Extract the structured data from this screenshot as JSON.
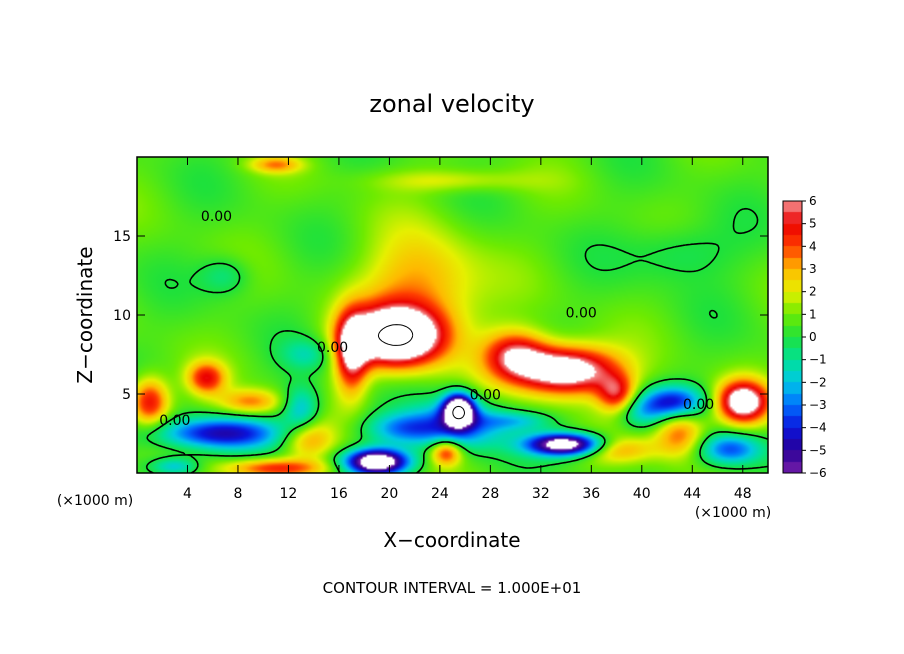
{
  "chart_data": {
    "type": "heatmap",
    "title": "zonal velocity",
    "xlabel": "X−coordinate",
    "ylabel": "Z−coordinate",
    "x_unit_label_left": "(×1000 m)",
    "x_unit_label_right": "(×1000 m)",
    "xlim": [
      0,
      50
    ],
    "ylim": [
      0,
      20
    ],
    "x_ticks": [
      4,
      8,
      12,
      16,
      20,
      24,
      28,
      32,
      36,
      40,
      44,
      48
    ],
    "x_tick_labels": [
      "4",
      "8",
      "12",
      "16",
      "20",
      "24",
      "28",
      "32",
      "36",
      "40",
      "44",
      "48"
    ],
    "y_ticks": [
      5,
      10,
      15
    ],
    "y_tick_labels": [
      "5",
      "10",
      "15"
    ],
    "colorbar": {
      "min": -6,
      "max": 6,
      "ticks": [
        6,
        5,
        4,
        3,
        2,
        1,
        0,
        -1,
        -2,
        -3,
        -4,
        -5,
        -6
      ],
      "tick_labels": [
        "6",
        "5",
        "4",
        "3",
        "2",
        "1",
        "0",
        "−1",
        "−2",
        "−3",
        "−4",
        "−5",
        "−6"
      ]
    },
    "contour_labels": [
      {
        "text": "0.00",
        "x": 6.3,
        "z": 16.2
      },
      {
        "text": "0.00",
        "x": 35.2,
        "z": 10.1
      },
      {
        "text": "0.00",
        "x": 15.5,
        "z": 7.9
      },
      {
        "text": "0.00",
        "x": 27.6,
        "z": 4.9
      },
      {
        "text": "0.00",
        "x": 3.0,
        "z": 3.3
      },
      {
        "text": "0.00",
        "x": 44.5,
        "z": 4.3
      }
    ],
    "features": [
      {
        "x": 20.5,
        "z": 8.6,
        "sx": 3.6,
        "sz": 1.8,
        "amp": 9
      },
      {
        "x": 22.5,
        "z": 11.5,
        "sx": 4.5,
        "sz": 3.5,
        "amp": 3
      },
      {
        "x": 34.0,
        "z": 6.5,
        "sx": 4.0,
        "sz": 1.5,
        "amp": 7.5
      },
      {
        "x": 30.0,
        "z": 7.5,
        "sx": 2.5,
        "sz": 1.5,
        "amp": 4.5
      },
      {
        "x": 38.0,
        "z": 5.0,
        "sx": 1.5,
        "sz": 1.2,
        "amp": 4
      },
      {
        "x": 17.0,
        "z": 7.5,
        "sx": 1.3,
        "sz": 2.5,
        "amp": 5
      },
      {
        "x": 48.0,
        "z": 4.5,
        "sx": 2.0,
        "sz": 1.3,
        "amp": 7
      },
      {
        "x": 43.0,
        "z": 2.5,
        "sx": 2.0,
        "sz": 1.5,
        "amp": 3.5
      },
      {
        "x": 1.0,
        "z": 4.5,
        "sx": 1.5,
        "sz": 1.5,
        "amp": 4.5
      },
      {
        "x": 5.5,
        "z": 6.0,
        "sx": 1.5,
        "sz": 1.0,
        "amp": 4
      },
      {
        "x": 9.0,
        "z": 4.5,
        "sx": 2.5,
        "sz": 0.8,
        "amp": 3
      },
      {
        "x": 13.5,
        "z": 2.2,
        "sx": 2.0,
        "sz": 1.2,
        "amp": 3
      },
      {
        "x": 11.0,
        "z": 0.3,
        "sx": 4.0,
        "sz": 0.6,
        "amp": 4
      },
      {
        "x": 24.5,
        "z": 1.3,
        "sx": 1.2,
        "sz": 0.8,
        "amp": 4
      },
      {
        "x": 38.0,
        "z": 1.5,
        "sx": 3.0,
        "sz": 0.8,
        "amp": 2.5
      },
      {
        "x": 11.0,
        "z": 19.5,
        "sx": 2.0,
        "sz": 0.5,
        "amp": 2.5
      },
      {
        "x": 25.0,
        "z": 18.5,
        "sx": 6.0,
        "sz": 0.7,
        "amp": 1.5
      },
      {
        "x": 19.0,
        "z": 0.7,
        "sx": 2.5,
        "sz": 0.8,
        "amp": -9
      },
      {
        "x": 34.0,
        "z": 1.8,
        "sx": 3.0,
        "sz": 0.7,
        "amp": -8.5
      },
      {
        "x": 25.5,
        "z": 4.0,
        "sx": 1.2,
        "sz": 1.0,
        "amp": -9
      },
      {
        "x": 25.5,
        "z": 3.0,
        "sx": 3.5,
        "sz": 1.5,
        "amp": -4
      },
      {
        "x": 42.5,
        "z": 4.5,
        "sx": 2.5,
        "sz": 1.0,
        "amp": -4.5
      },
      {
        "x": 6.5,
        "z": 2.5,
        "sx": 5.0,
        "sz": 1.0,
        "amp": -5
      },
      {
        "x": 13.0,
        "z": 4.0,
        "sx": 1.5,
        "sz": 1.5,
        "amp": -3
      },
      {
        "x": 21.0,
        "z": 2.8,
        "sx": 3.0,
        "sz": 1.0,
        "amp": -3
      },
      {
        "x": 47.0,
        "z": 1.5,
        "sx": 2.5,
        "sz": 1.0,
        "amp": -4
      },
      {
        "x": 3.0,
        "z": 0.4,
        "sx": 2.0,
        "sz": 0.6,
        "amp": -3
      },
      {
        "x": 40.0,
        "z": 3.8,
        "sx": 2.0,
        "sz": 1.0,
        "amp": -2
      },
      {
        "x": 30.0,
        "z": 3.3,
        "sx": 3.0,
        "sz": 0.6,
        "amp": -2
      },
      {
        "x": 7.0,
        "z": 12.5,
        "sx": 2.0,
        "sz": 1.2,
        "amp": -1.5
      },
      {
        "x": 43.0,
        "z": 14.0,
        "sx": 4.0,
        "sz": 1.8,
        "amp": -1.2
      },
      {
        "x": 13.5,
        "z": 7.5,
        "sx": 2.0,
        "sz": 1.0,
        "amp": -1.6
      }
    ],
    "background_value": 0.6,
    "colors": {
      "over": "#ffffff",
      "under": "#ffffff",
      "contour": "#000000"
    },
    "contour_interval_note": "CONTOUR INTERVAL = 1.000E+01"
  }
}
